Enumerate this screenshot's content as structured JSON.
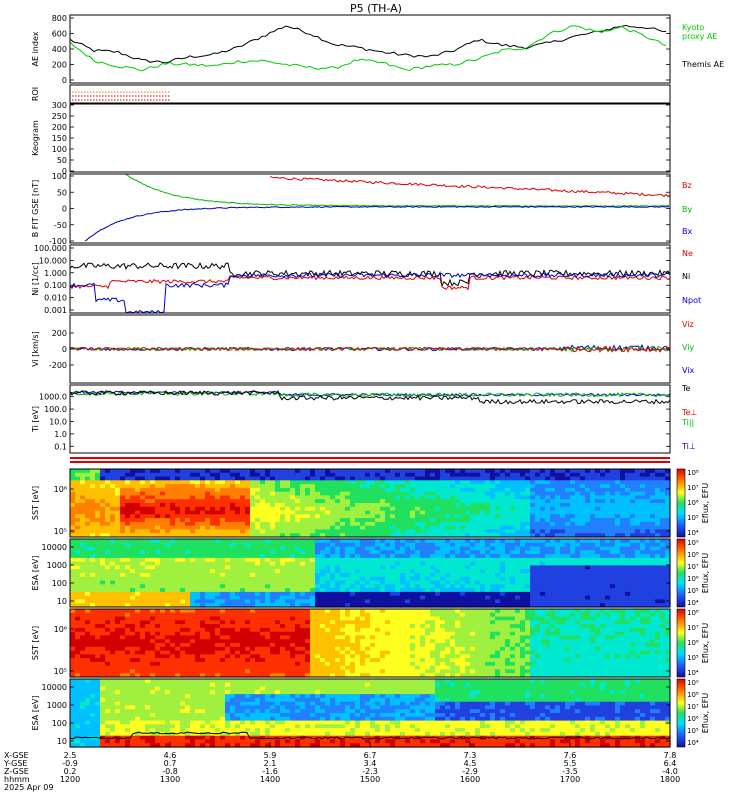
{
  "chart_data": {
    "type": "line",
    "title": "P5 (TH-A)",
    "x_time_ticks": [
      "1200",
      "1300",
      "1400",
      "1500",
      "1600",
      "1700",
      "1800"
    ],
    "x_date_label": "2025 Apr 09",
    "orbit_rows": [
      {
        "label": "X-GSE",
        "values": [
          "2.5",
          "4.6",
          "5.9",
          "6.7",
          "7.3",
          "7.6",
          "7.8"
        ]
      },
      {
        "label": "Y-GSE",
        "values": [
          "-0.9",
          "0.7",
          "2.1",
          "3.4",
          "4.5",
          "5.5",
          "6.4"
        ]
      },
      {
        "label": "Z-GSE",
        "values": [
          "0.2",
          "-0.8",
          "-1.6",
          "-2.3",
          "-2.9",
          "-3.5",
          "-4.0"
        ]
      },
      {
        "label": "hhmm",
        "values": [
          "",
          "",
          "",
          "",
          "",
          "",
          ""
        ]
      }
    ],
    "panels": [
      {
        "id": "ae",
        "ylabel": "AE index",
        "yticks": [
          "800",
          "600",
          "400",
          "200",
          "0"
        ],
        "legend": [
          {
            "text": "Kyoto",
            "color": "#00cc00"
          },
          {
            "text": "proxy AE",
            "color": "#00cc00"
          },
          {
            "text": "Themis AE",
            "color": "#000000"
          }
        ],
        "series": [
          {
            "name": "Themis AE",
            "color": "#000000",
            "values": [
              520,
              380,
              360,
              250,
              230,
              300,
              330,
              420,
              560,
              700,
              600,
              460,
              420,
              360,
              320,
              300,
              380,
              520,
              450,
              420,
              480,
              560,
              620,
              700,
              680,
              600
            ]
          },
          {
            "name": "Kyoto proxy AE",
            "color": "#00cc00",
            "values": [
              480,
              250,
              180,
              130,
              210,
              200,
              180,
              240,
              250,
              200,
              160,
              150,
              260,
              220,
              130,
              180,
              200,
              270,
              380,
              420,
              600,
              700,
              620,
              680,
              560,
              420
            ]
          }
        ]
      },
      {
        "id": "roi",
        "ylabel": "ROI",
        "yticks": []
      },
      {
        "id": "keogram",
        "ylabel": "Keogram",
        "yticks": [
          "300",
          "250",
          "200",
          "150",
          "100",
          "50",
          "0"
        ]
      },
      {
        "id": "bfield",
        "ylabel": "B FIT GSE [nT]",
        "yticks": [
          "100",
          "50",
          "0",
          "-50",
          "-100"
        ],
        "legend": [
          {
            "text": "Bz",
            "color": "#dd0000"
          },
          {
            "text": "By",
            "color": "#00bb00"
          },
          {
            "text": "Bx",
            "color": "#0000cc"
          }
        ]
      },
      {
        "id": "ni",
        "ylabel": "Ni [1/cc]",
        "yticks": [
          "100.000",
          "10.000",
          "1.000",
          "0.100",
          "0.010",
          "0.001"
        ],
        "legend": [
          {
            "text": "Ne",
            "color": "#dd0000"
          },
          {
            "text": "Ni",
            "color": "#000000"
          },
          {
            "text": "Npot",
            "color": "#0000cc"
          }
        ]
      },
      {
        "id": "vi",
        "ylabel": "Vi [km/s]",
        "yticks": [
          "200",
          "0",
          "-200"
        ],
        "legend": [
          {
            "text": "Viz",
            "color": "#dd0000"
          },
          {
            "text": "Viy",
            "color": "#00bb00"
          },
          {
            "text": "Vix",
            "color": "#0000cc"
          }
        ]
      },
      {
        "id": "ti",
        "ylabel": "Ti [eV]",
        "yticks": [
          "1000.0",
          "100.0",
          "10.0",
          "1.0",
          "0.1"
        ],
        "legend": [
          {
            "text": "Te",
            "color": "#000000"
          },
          {
            "text": "Te⊥",
            "color": "#dd0000"
          },
          {
            "text": "Ti||",
            "color": "#00bb00"
          },
          {
            "text": "Ti⊥",
            "color": "#0000cc"
          }
        ]
      },
      {
        "id": "sst1",
        "ylabel": "SST [eV]",
        "yticks": [
          "10⁶",
          "10⁵"
        ],
        "cbar_label": "Eflux, EFU",
        "cbar_ticks": [
          "10⁸",
          "10⁷",
          "10⁶",
          "10⁵",
          "10⁴"
        ]
      },
      {
        "id": "esa1",
        "ylabel": "ESA [eV]",
        "yticks": [
          "10000",
          "1000",
          "100",
          "10"
        ],
        "cbar_label": "Eflux, EFU",
        "cbar_ticks": [
          "10⁹",
          "10⁸",
          "10⁷",
          "10⁶",
          "10⁵",
          "10⁴"
        ]
      },
      {
        "id": "sst2",
        "ylabel": "SST [eV]",
        "yticks": [
          "10⁶",
          "10⁵"
        ],
        "cbar_label": "Eflux, EFU",
        "cbar_ticks": [
          "10⁸",
          "10⁷",
          "10⁶",
          "10⁵",
          "10⁴"
        ]
      },
      {
        "id": "esa2",
        "ylabel": "ESA [eV]",
        "yticks": [
          "10000",
          "1000",
          "100",
          "10"
        ],
        "cbar_label": "Eflux, EFU",
        "cbar_ticks": [
          "10⁹",
          "10⁸",
          "10⁷",
          "10⁶",
          "10⁵",
          "10⁴"
        ]
      }
    ]
  }
}
